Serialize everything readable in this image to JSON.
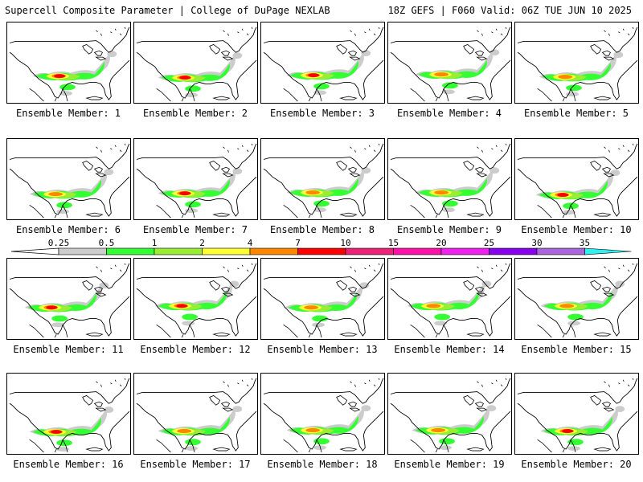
{
  "header": {
    "left": "Supercell Composite Parameter | College of DuPage NEXLAB",
    "right": "18Z GEFS | F060 Valid: 06Z TUE JUN 10 2025"
  },
  "panels": [
    {
      "label": "Ensemble Member: 1"
    },
    {
      "label": "Ensemble Member: 2"
    },
    {
      "label": "Ensemble Member: 3"
    },
    {
      "label": "Ensemble Member: 4"
    },
    {
      "label": "Ensemble Member: 5"
    },
    {
      "label": "Ensemble Member: 6"
    },
    {
      "label": "Ensemble Member: 7"
    },
    {
      "label": "Ensemble Member: 8"
    },
    {
      "label": "Ensemble Member: 9"
    },
    {
      "label": "Ensemble Member: 10"
    },
    {
      "label": "Ensemble Member: 11"
    },
    {
      "label": "Ensemble Member: 12"
    },
    {
      "label": "Ensemble Member: 13"
    },
    {
      "label": "Ensemble Member: 14"
    },
    {
      "label": "Ensemble Member: 15"
    },
    {
      "label": "Ensemble Member: 16"
    },
    {
      "label": "Ensemble Member: 17"
    },
    {
      "label": "Ensemble Member: 18"
    },
    {
      "label": "Ensemble Member: 19"
    },
    {
      "label": "Ensemble Member: 20"
    }
  ],
  "colorbar": {
    "ticks": [
      "0.25",
      "0.5",
      "1",
      "2",
      "4",
      "7",
      "10",
      "15",
      "20",
      "25",
      "30",
      "35"
    ],
    "colors": [
      "#cccccc",
      "#33ff33",
      "#99ee33",
      "#ffff33",
      "#ff8800",
      "#ff0000",
      "#ee2277",
      "#ff11aa",
      "#ee22ee",
      "#8800ee",
      "#aa66dd",
      "#33eeee"
    ]
  }
}
